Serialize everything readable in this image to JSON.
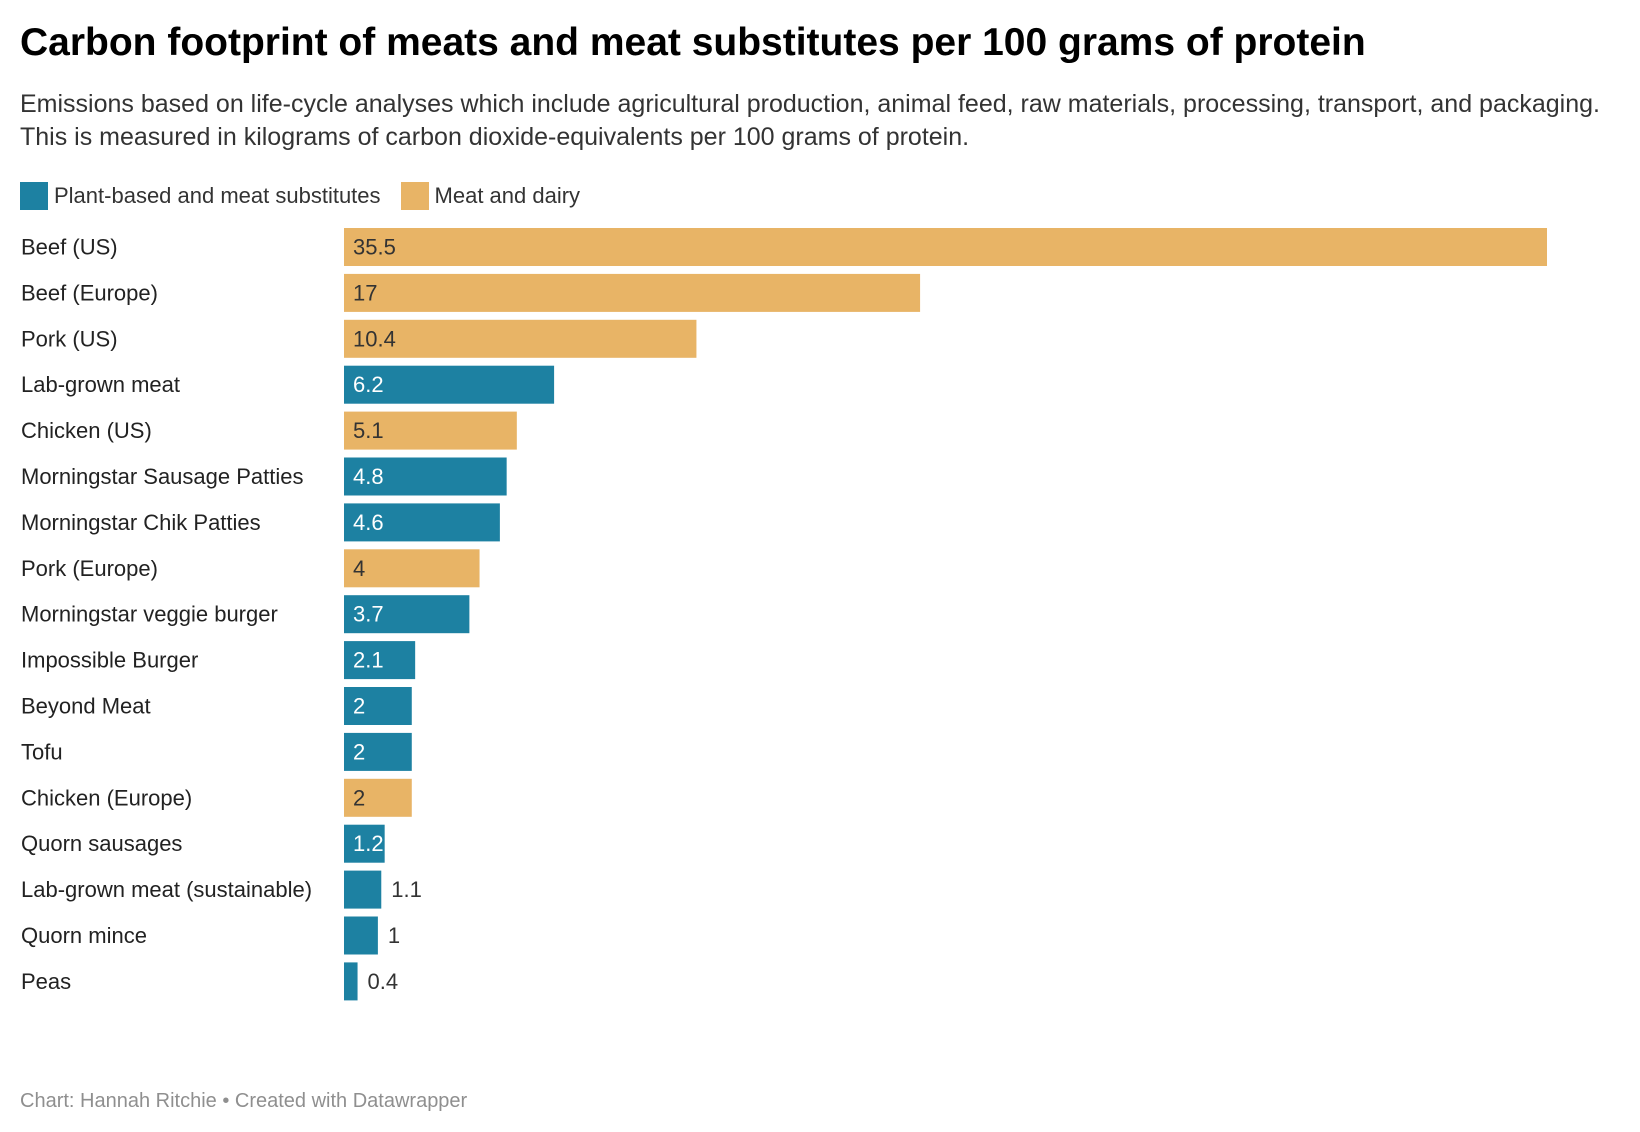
{
  "title": "Carbon footprint of meats and meat substitutes per 100 grams of protein",
  "subtitle": "Emissions based on life-cycle analyses which include agricultural production, animal feed, raw materials, processing, transport, and packaging. This is measured in kilograms of carbon dioxide-equivalents per 100 grams of protein.",
  "legend": [
    {
      "key": "plant",
      "label": "Plant-based and meat substitutes",
      "color": "#1d81a2"
    },
    {
      "key": "meat",
      "label": "Meat and dairy",
      "color": "#e8b466"
    }
  ],
  "footer": "Chart: Hannah Ritchie • Created with Datawrapper",
  "chart_data": {
    "type": "bar",
    "orientation": "horizontal",
    "xlim": [
      0,
      35.5
    ],
    "grid": false,
    "legend_position": "top-left",
    "colors": {
      "plant": "#1d81a2",
      "meat": "#e8b466"
    },
    "categories": [
      "Beef (US)",
      "Beef (Europe)",
      "Pork (US)",
      "Lab-grown meat",
      "Chicken (US)",
      "Morningstar Sausage Patties",
      "Morningstar Chik Patties",
      "Pork (Europe)",
      "Morningstar veggie burger",
      "Impossible Burger",
      "Beyond Meat",
      "Tofu",
      "Chicken (Europe)",
      "Quorn sausages",
      "Lab-grown meat (sustainable)",
      "Quorn mince",
      "Peas"
    ],
    "values": [
      35.5,
      17,
      10.4,
      6.2,
      5.1,
      4.8,
      4.6,
      4,
      3.7,
      2.1,
      2,
      2,
      2,
      1.2,
      1.1,
      1,
      0.4
    ],
    "value_labels": [
      "35.5",
      "17",
      "10.4",
      "6.2",
      "5.1",
      "4.8",
      "4.6",
      "4",
      "3.7",
      "2.1",
      "2",
      "2",
      "2",
      "1.2",
      "1.1",
      "1",
      "0.4"
    ],
    "groups": [
      "meat",
      "meat",
      "meat",
      "plant",
      "meat",
      "plant",
      "plant",
      "meat",
      "plant",
      "plant",
      "plant",
      "plant",
      "meat",
      "plant",
      "plant",
      "plant",
      "plant"
    ]
  }
}
